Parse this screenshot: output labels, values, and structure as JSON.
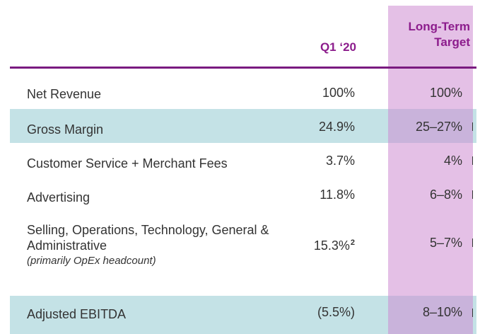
{
  "header": {
    "q1_label": "Q1 ‘20",
    "target_line1": "Long-Term",
    "target_line2": "Target"
  },
  "rows": [
    {
      "label": "Net Revenue",
      "q1": "100%",
      "target": "100%"
    },
    {
      "label": "Gross Margin",
      "q1": "24.9%",
      "target": "25–27%"
    },
    {
      "label": "Customer Service + Merchant Fees",
      "q1": "3.7%",
      "target": "4%"
    },
    {
      "label": "Advertising",
      "q1": "11.8%",
      "target": "6–8%"
    },
    {
      "label_line1": "Selling, Operations, Technology, General &",
      "label_line2": "Administrative",
      "sublabel": "(primarily OpEx headcount)",
      "q1": "15.3%",
      "q1_footnote": "2",
      "target": "5–7%"
    },
    {
      "label": "Adjusted EBITDA",
      "q1": "(5.5%)",
      "target": "8–10%"
    }
  ],
  "colors": {
    "header_purple": "#8c1c8c",
    "rule_purple": "#7a1a80",
    "highlight_teal": "#c4e2e6",
    "target_column": "#d7a6da"
  }
}
